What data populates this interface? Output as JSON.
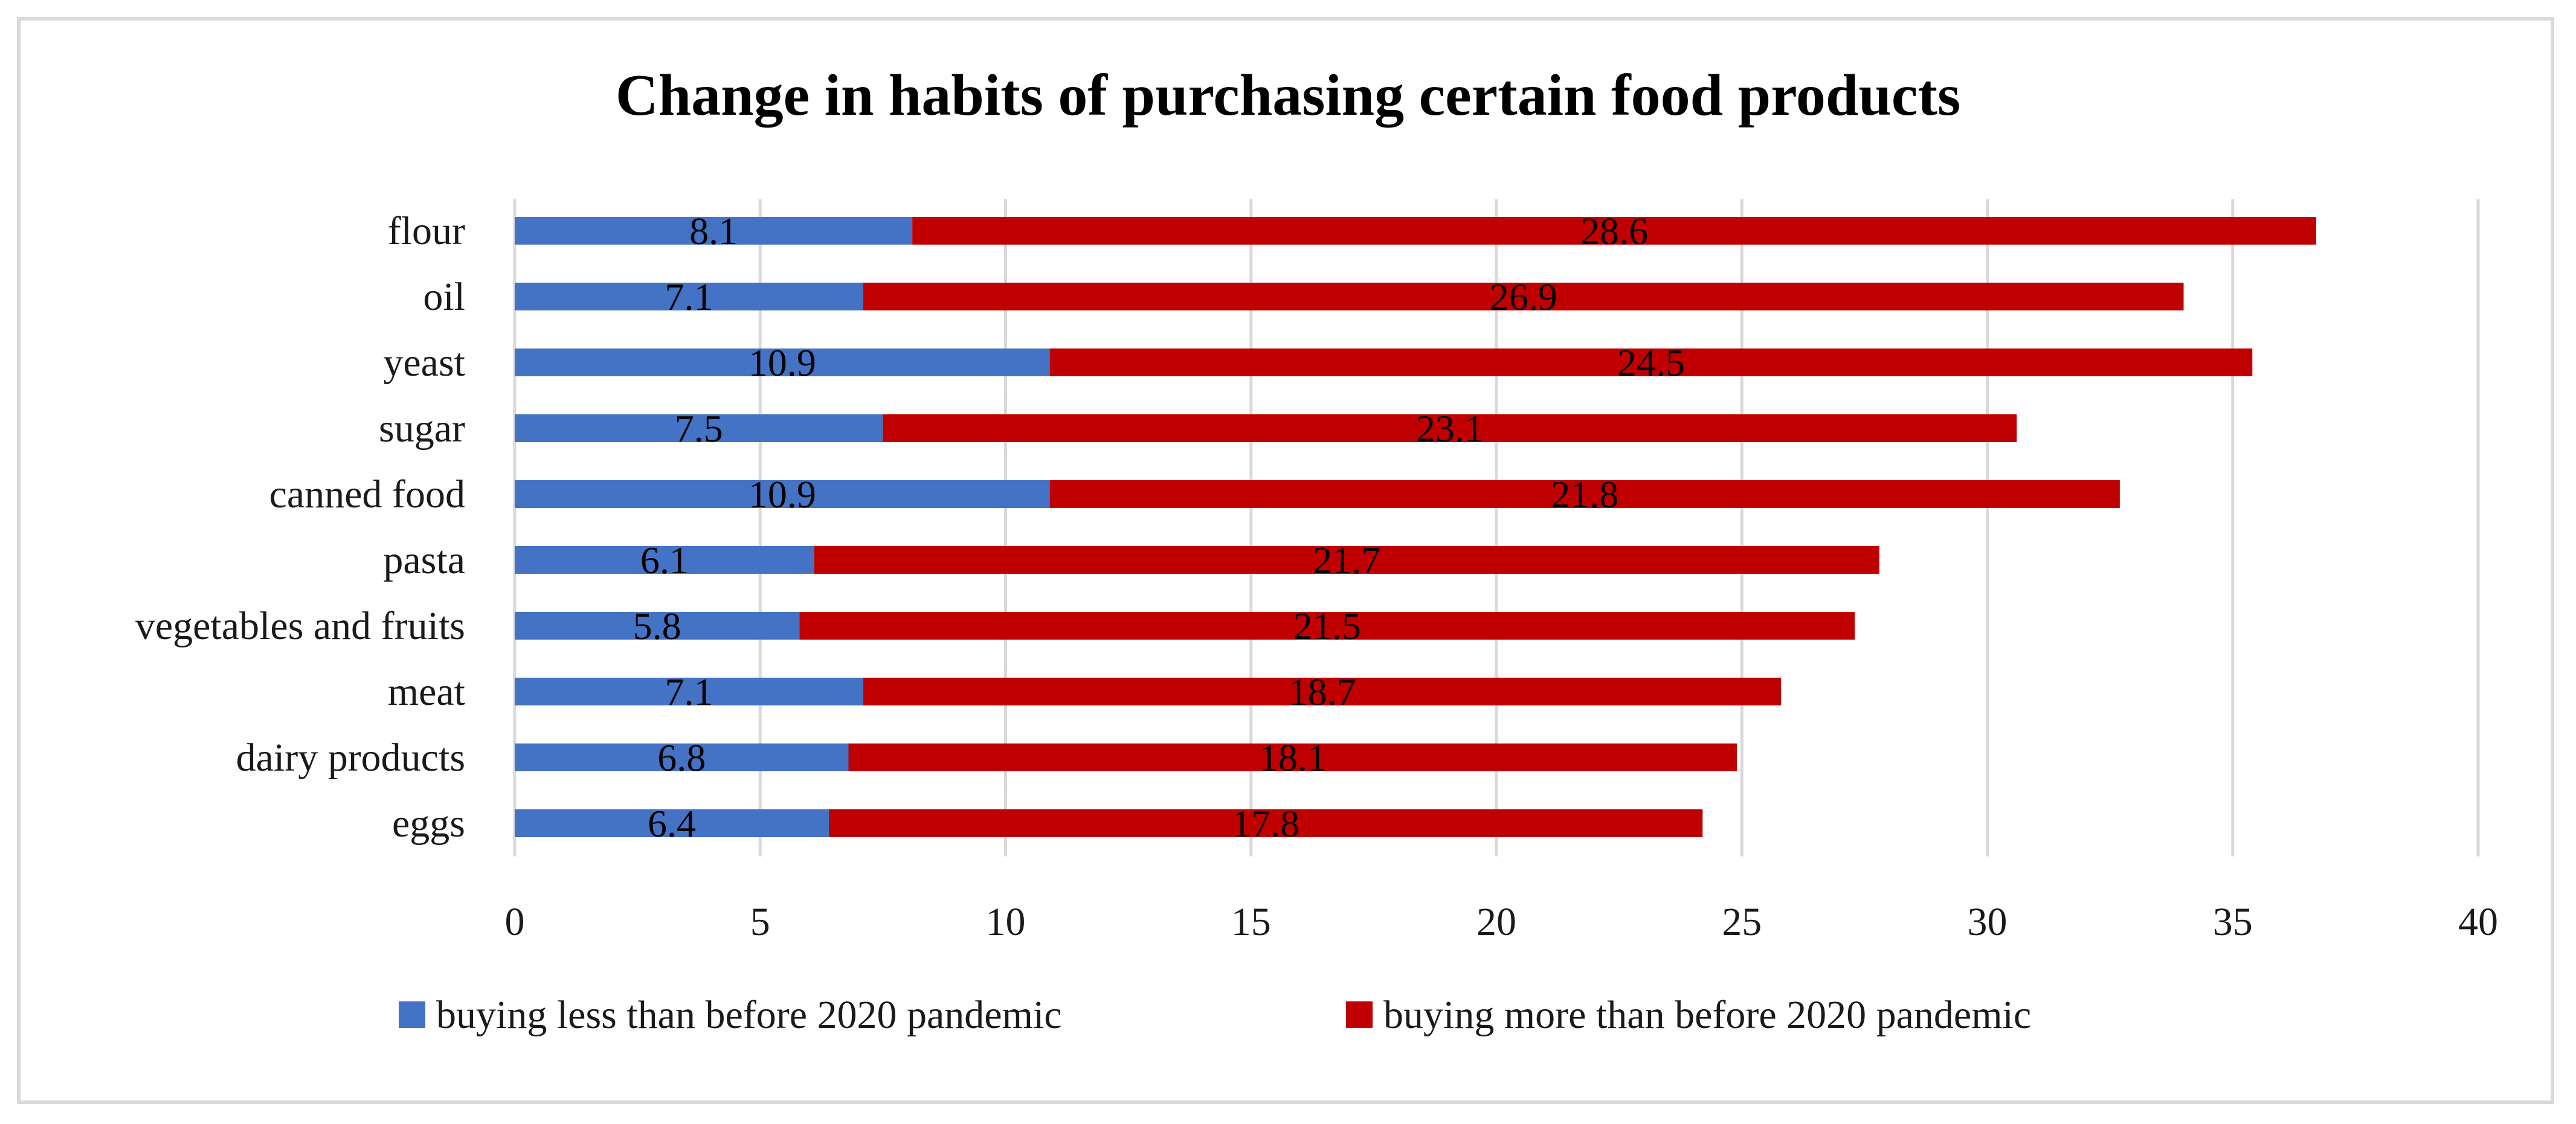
{
  "chart_data": {
    "type": "bar",
    "orientation": "horizontal",
    "stacked": true,
    "title": "Change in habits of purchasing certain food products",
    "categories": [
      "flour",
      "oil",
      "yeast",
      "sugar",
      "canned food",
      "pasta",
      "vegetables and fruits",
      "meat",
      "dairy products",
      "eggs"
    ],
    "series": [
      {
        "name": "buying less than before 2020 pandemic",
        "color": "#4472C4",
        "values": [
          8.1,
          7.1,
          10.9,
          7.5,
          10.9,
          6.1,
          5.8,
          7.1,
          6.8,
          6.4
        ]
      },
      {
        "name": "buying more than before 2020 pandemic",
        "color": "#C00000",
        "values": [
          28.6,
          26.9,
          24.5,
          23.1,
          21.8,
          21.7,
          21.5,
          18.7,
          18.1,
          17.8
        ]
      }
    ],
    "xlim": [
      0,
      40
    ],
    "xticks": [
      0,
      5,
      10,
      15,
      20,
      25,
      30,
      35,
      40
    ],
    "xlabel": "",
    "ylabel": "",
    "grid": true,
    "legend_position": "bottom",
    "gridline_color": "#d9d9d9"
  }
}
